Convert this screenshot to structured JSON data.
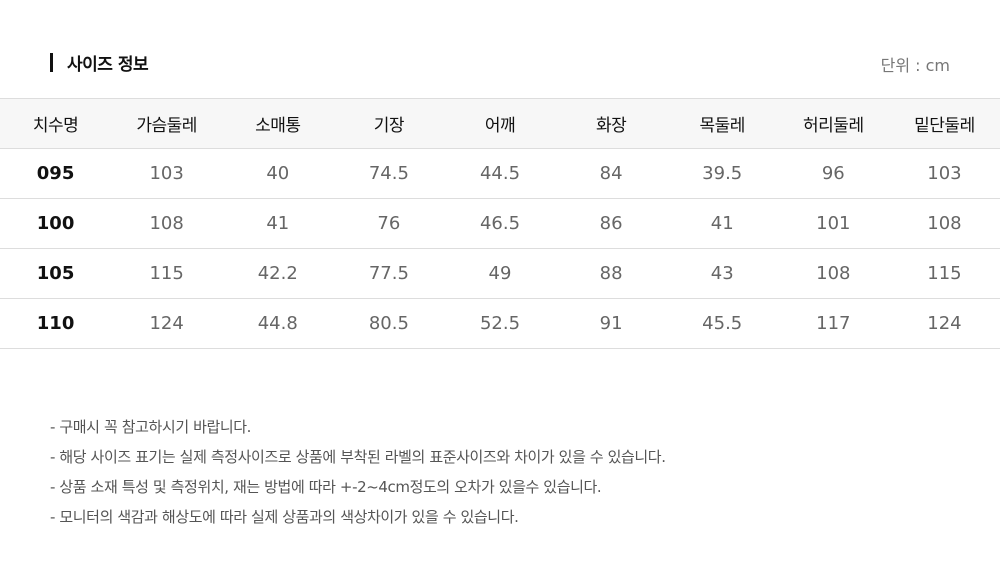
{
  "section": {
    "title": "사이즈 정보",
    "unit": "단위 : cm"
  },
  "table": {
    "headers": [
      "치수명",
      "가슴둘레",
      "소매통",
      "기장",
      "어깨",
      "화장",
      "목둘레",
      "허리둘레",
      "밑단둘레"
    ],
    "rows": [
      [
        "095",
        "103",
        "40",
        "74.5",
        "44.5",
        "84",
        "39.5",
        "96",
        "103"
      ],
      [
        "100",
        "108",
        "41",
        "76",
        "46.5",
        "86",
        "41",
        "101",
        "108"
      ],
      [
        "105",
        "115",
        "42.2",
        "77.5",
        "49",
        "88",
        "43",
        "108",
        "115"
      ],
      [
        "110",
        "124",
        "44.8",
        "80.5",
        "52.5",
        "91",
        "45.5",
        "117",
        "124"
      ]
    ]
  },
  "notes": [
    "- 구매시 꼭 참고하시기 바랍니다.",
    "- 해당 사이즈 표기는 실제 측정사이즈로 상품에 부착된 라벨의 표준사이즈와 차이가 있을 수 있습니다.",
    "- 상품 소재 특성 및 측정위치, 재는 방법에 따라 +-2~4cm정도의 오차가 있을수 있습니다.",
    "- 모니터의 색감과 해상도에 따라 실제 상품과의 색상차이가 있을 수 있습니다."
  ]
}
